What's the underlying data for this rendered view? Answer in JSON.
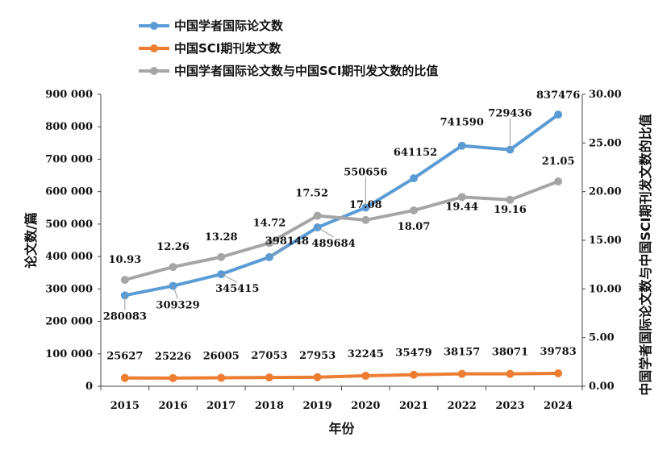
{
  "chart_data": {
    "type": "line",
    "title": "",
    "xlabel": "年份",
    "ylabel": "论文数/篇",
    "y2label": "中国学者国际论文数与中国SCI期刊发文数的比值",
    "categories": [
      "2015",
      "2016",
      "2017",
      "2018",
      "2019",
      "2020",
      "2021",
      "2022",
      "2023",
      "2024"
    ],
    "ylim": [
      0,
      900000
    ],
    "y_ticks": [
      "0",
      "100 000",
      "200 000",
      "300 000",
      "400 000",
      "500 000",
      "600 000",
      "700 000",
      "800 000",
      "900 000"
    ],
    "y2lim": [
      0,
      30
    ],
    "y2_ticks": [
      "0.00",
      "5.00",
      "10.00",
      "15.00",
      "20.00",
      "25.00",
      "30.00"
    ],
    "legend_position": "top-left",
    "grid": false,
    "series": [
      {
        "name": "中国学者国际论文数",
        "axis": "left",
        "color": "#5B9BD5",
        "values": [
          280083,
          309329,
          345415,
          398148,
          489684,
          550656,
          641152,
          741590,
          729436,
          837476
        ],
        "labels": [
          "280083",
          "309329",
          "345415",
          "398148",
          "489684",
          "550656",
          "641152",
          "741590",
          "729436",
          "837476"
        ]
      },
      {
        "name": "中国SCI期刊发文数",
        "axis": "left",
        "color": "#ED7D31",
        "values": [
          25627,
          25226,
          26005,
          27053,
          27953,
          32245,
          35479,
          38157,
          38071,
          39783
        ],
        "labels": [
          "25627",
          "25226",
          "26005",
          "27053",
          "27953",
          "32245",
          "35479",
          "38157",
          "38071",
          "39783"
        ]
      },
      {
        "name": "中国学者国际论文数与中国SCI期刊发文数的比值",
        "axis": "right",
        "color": "#A5A5A5",
        "values": [
          10.93,
          12.26,
          13.28,
          14.72,
          17.52,
          17.08,
          18.07,
          19.44,
          19.16,
          21.05
        ],
        "labels": [
          "10.93",
          "12.26",
          "13.28",
          "14.72",
          "17.52",
          "17.08",
          "18.07",
          "19.44",
          "19.16",
          "21.05"
        ]
      }
    ]
  }
}
